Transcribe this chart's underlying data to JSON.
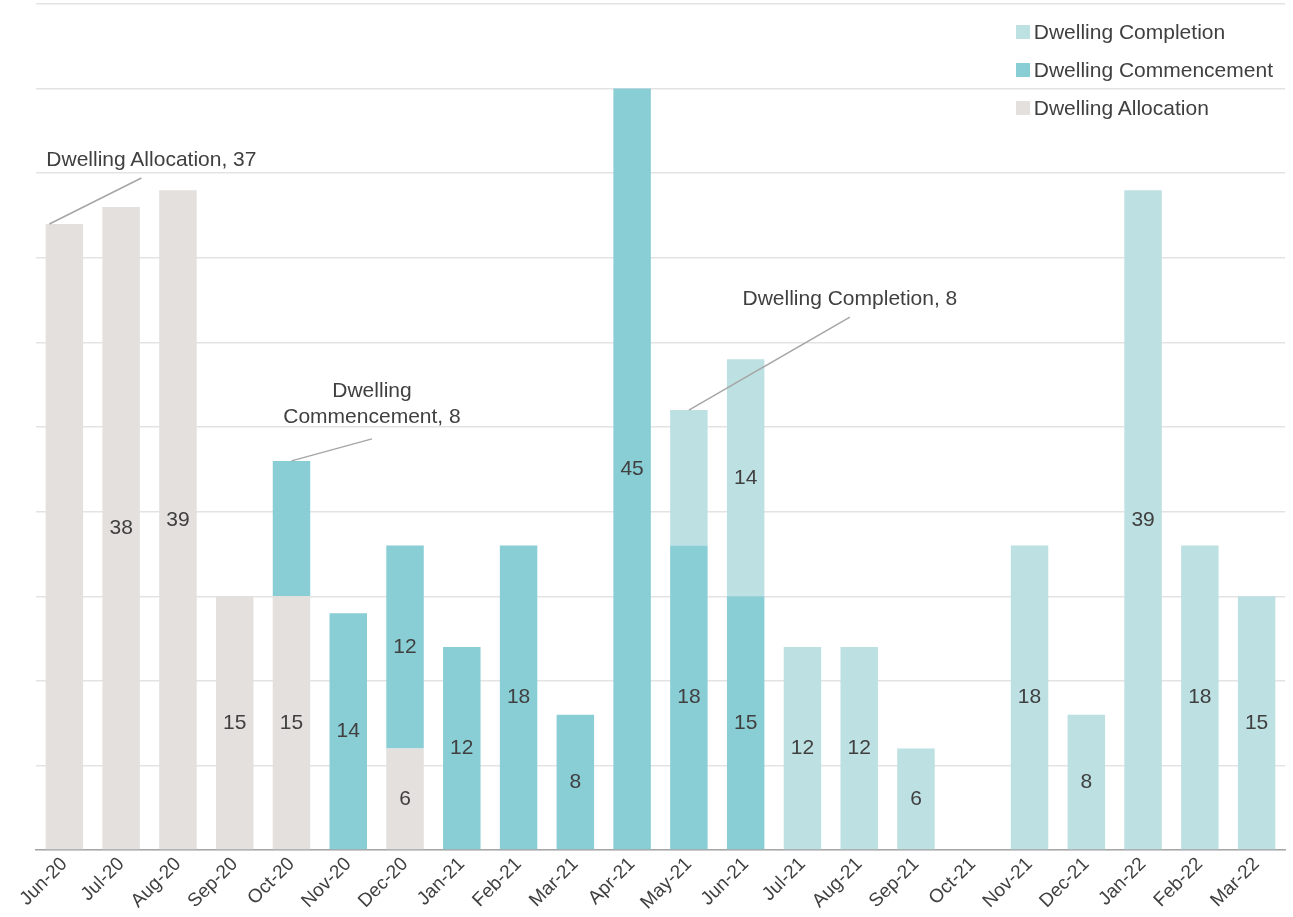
{
  "chart_data": {
    "type": "bar",
    "stacked": true,
    "categories": [
      "Jun-20",
      "Jul-20",
      "Aug-20",
      "Sep-20",
      "Oct-20",
      "Nov-20",
      "Dec-20",
      "Jan-21",
      "Feb-21",
      "Mar-21",
      "Apr-21",
      "May-21",
      "Jun-21",
      "Jul-21",
      "Aug-21",
      "Sep-21",
      "Oct-21",
      "Nov-21",
      "Dec-21",
      "Jan-22",
      "Feb-22",
      "Mar-22"
    ],
    "series": [
      {
        "name": "Dwelling Allocation",
        "color": "#e3e0dd",
        "values": [
          37,
          38,
          39,
          15,
          15,
          null,
          6,
          null,
          null,
          null,
          null,
          null,
          null,
          null,
          null,
          null,
          null,
          null,
          null,
          null,
          null,
          null
        ],
        "value_labels": [
          null,
          "38",
          "39",
          "15",
          "15",
          null,
          "6",
          null,
          null,
          null,
          null,
          null,
          null,
          null,
          null,
          null,
          null,
          null,
          null,
          null,
          null,
          null
        ]
      },
      {
        "name": "Dwelling Commencement",
        "color": "#89cdd5",
        "values": [
          null,
          null,
          null,
          null,
          8,
          14,
          12,
          12,
          18,
          8,
          45,
          18,
          15,
          null,
          null,
          null,
          null,
          null,
          null,
          null,
          null,
          null
        ],
        "value_labels": [
          null,
          null,
          null,
          null,
          null,
          "14",
          "12",
          "12",
          "18",
          "8",
          "45",
          "18",
          "15",
          null,
          null,
          null,
          null,
          null,
          null,
          null,
          null,
          null
        ]
      },
      {
        "name": "Dwelling Completion",
        "color": "#bde0e3",
        "values": [
          null,
          null,
          null,
          null,
          null,
          null,
          null,
          null,
          null,
          null,
          null,
          8,
          14,
          12,
          12,
          6,
          null,
          18,
          8,
          39,
          18,
          15
        ],
        "value_labels": [
          null,
          null,
          null,
          null,
          null,
          null,
          null,
          null,
          null,
          null,
          null,
          null,
          "14",
          "12",
          "12",
          "6",
          null,
          "18",
          "8",
          "39",
          "18",
          "15"
        ]
      }
    ],
    "ylim": [
      0,
      50
    ],
    "yticks": [
      {
        "value": 0,
        "label": null
      },
      {
        "value": 5,
        "label": null
      },
      {
        "value": 10,
        "label": null
      },
      {
        "value": 15,
        "label": null
      },
      {
        "value": 20,
        "label": null
      },
      {
        "value": 25,
        "label": null
      },
      {
        "value": 30,
        "label": null
      },
      {
        "value": 35,
        "label": null
      },
      {
        "value": 40,
        "label": null
      },
      {
        "value": 45,
        "label": null
      },
      {
        "value": 50,
        "label": null
      }
    ],
    "tick_labels": "x",
    "grid": "y",
    "legend": "top right",
    "annotations": [
      {
        "text": "Dwelling Allocation, 37",
        "x": "Jun-20",
        "y": 37
      },
      {
        "text": "Dwelling Commencement, 8",
        "x": "Oct-20",
        "y": 23
      },
      {
        "text": "Dwelling Completion, 8",
        "x": "May-21",
        "y": 26
      }
    ]
  }
}
